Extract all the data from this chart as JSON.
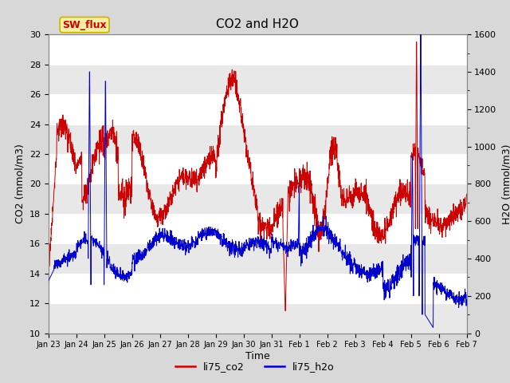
{
  "title": "CO2 and H2O",
  "xlabel": "Time",
  "ylabel_left": "CO2 (mmol/m3)",
  "ylabel_right": "H2O (mmol/m3)",
  "ylim_left": [
    10,
    30
  ],
  "ylim_right": [
    0,
    1600
  ],
  "fig_bg_color": "#d8d8d8",
  "plot_bg_color": "#ffffff",
  "band_color": "#e8e8e8",
  "annotation_text": "SW_flux",
  "annotation_bg": "#f5f0a0",
  "annotation_border": "#c8b400",
  "co2_color": "#cc0000",
  "h2o_color": "#0000cc",
  "tick_labels": [
    "Jan 23",
    "Jan 24",
    "Jan 25",
    "Jan 26",
    "Jan 27",
    "Jan 28",
    "Jan 29",
    "Jan 30",
    "Jan 31",
    "Feb 1",
    "Feb 2",
    "Feb 3",
    "Feb 4",
    "Feb 5",
    "Feb 6",
    "Feb 7"
  ],
  "legend_label_co2": "li75_co2",
  "legend_label_h2o": "li75_h2o",
  "yticks_left": [
    10,
    12,
    14,
    16,
    18,
    20,
    22,
    24,
    26,
    28,
    30
  ],
  "yticks_right": [
    0,
    200,
    400,
    600,
    800,
    1000,
    1200,
    1400,
    1600
  ]
}
